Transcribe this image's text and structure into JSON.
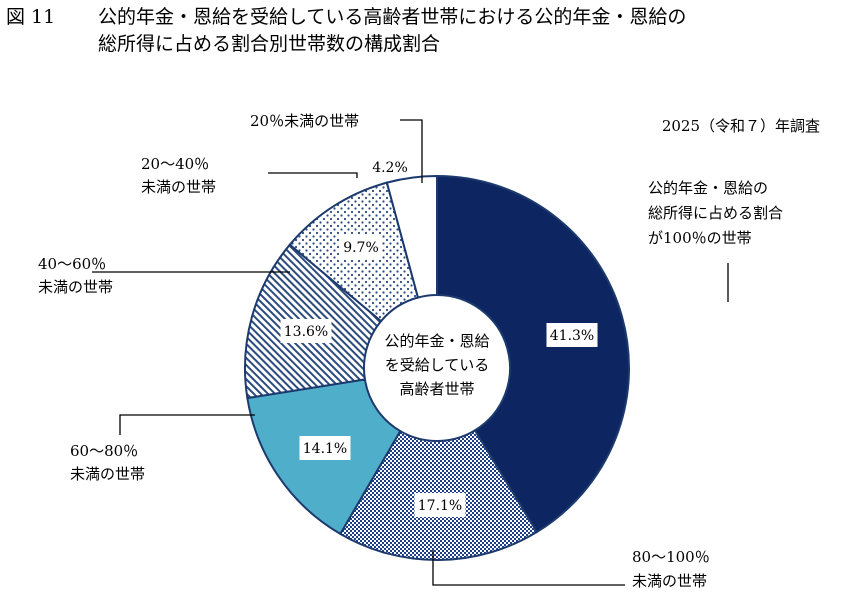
{
  "title": {
    "prefix": "図 11",
    "line1": "公的年金・恩給を受給している高齢者世帯における公的年金・恩給の",
    "line2": "総所得に占める割合別世帯数の構成割合"
  },
  "survey_note": "2025（令和７）年調査",
  "chart_data": {
    "type": "pie",
    "style": "donut",
    "center_label": [
      "公的年金・恩給",
      "を受給している",
      "高齢者世帯"
    ],
    "slices": [
      {
        "label": [
          "公的年金・恩給の",
          "総所得に占める割合",
          "が100％の世帯"
        ],
        "value": 41.3,
        "display": "41.3%",
        "color": "#0d2560",
        "pattern": "solid"
      },
      {
        "label": [
          "80～100％",
          "未満の世帯"
        ],
        "value": 17.1,
        "display": "17.1%",
        "color": "#1f3f88",
        "pattern": "checker"
      },
      {
        "label": [
          "60～80％",
          "未満の世帯"
        ],
        "value": 14.1,
        "display": "14.1%",
        "color": "#4fafcb",
        "pattern": "solid"
      },
      {
        "label": [
          "40～60％",
          "未満の世帯"
        ],
        "value": 13.6,
        "display": "13.6%",
        "color": "#2b4a7d",
        "pattern": "diagonal-stripes"
      },
      {
        "label": [
          "20～40％",
          "未満の世帯"
        ],
        "value": 9.7,
        "display": "9.7%",
        "color": "#2b4a7d",
        "pattern": "dots"
      },
      {
        "label": [
          "20％未満の世帯"
        ],
        "value": 4.2,
        "display": "4.2%",
        "color": "#ffffff",
        "pattern": "solid"
      }
    ]
  }
}
